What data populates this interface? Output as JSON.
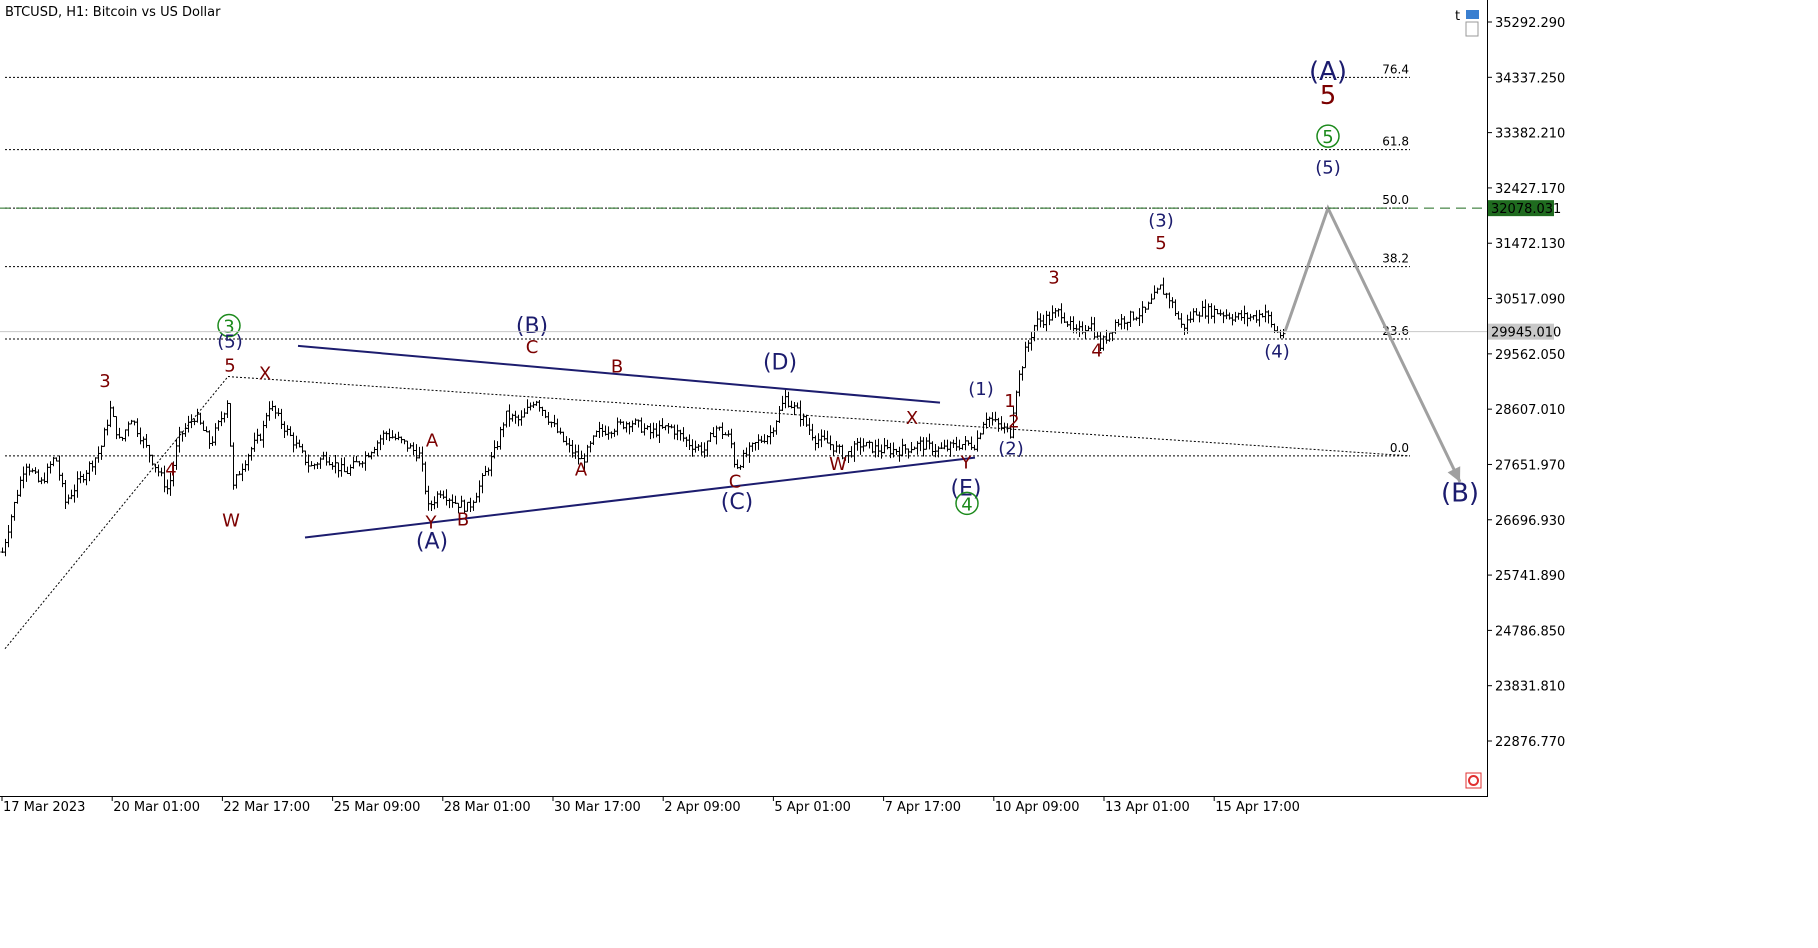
{
  "header": {
    "symbol_text": "BTCUSD, H1:  Bitcoin vs US Dollar"
  },
  "icons": {
    "toolbar": "trading-tool-icons",
    "corner": "one-click-trading-icon"
  },
  "colors": {
    "bars": "#000000",
    "grid": "#000000",
    "dark_red": "#7B0000",
    "navy": "#1C1C6E",
    "green": "#1C8A1C",
    "projection": "#A0A0A0",
    "triangle": "#1C1C6E",
    "target_badge": "#1F6B1F",
    "price_badge": "#C8C8C8",
    "corner_icon": "#E03030"
  },
  "chart_data": {
    "type": "candlestick",
    "symbol": "BTCUSD",
    "timeframe": "H1",
    "title": "Bitcoin vs US Dollar",
    "ylim": [
      21900,
      35900
    ],
    "y_ticks": [
      "35292.290",
      "34337.250",
      "33382.210",
      "32427.170",
      "31472.130",
      "30517.090",
      "29562.050",
      "28607.010",
      "27651.970",
      "26696.930",
      "25741.890",
      "24786.850",
      "23831.810",
      "22876.770"
    ],
    "x_ticks": [
      "17 Mar 2023",
      "20 Mar 01:00",
      "22 Mar 17:00",
      "25 Mar 09:00",
      "28 Mar 01:00",
      "30 Mar 17:00",
      "2 Apr 09:00",
      "5 Apr 01:00",
      "7 Apr 17:00",
      "10 Apr 09:00",
      "13 Apr 01:00",
      "15 Apr 17:00"
    ],
    "current_price": "29945.010",
    "target_price": "32078.031",
    "fibonacci_levels": [
      "76.4",
      "61.8",
      "50.0",
      "38.2",
      "23.6",
      "0.0"
    ],
    "price_path": [
      [
        0,
        26000
      ],
      [
        10,
        26700
      ],
      [
        25,
        27700
      ],
      [
        40,
        27300
      ],
      [
        55,
        27800
      ],
      [
        65,
        27000
      ],
      [
        80,
        27400
      ],
      [
        100,
        27900
      ],
      [
        110,
        28600
      ],
      [
        120,
        28000
      ],
      [
        130,
        28500
      ],
      [
        150,
        27800
      ],
      [
        168,
        27200
      ],
      [
        178,
        28100
      ],
      [
        195,
        28500
      ],
      [
        210,
        28000
      ],
      [
        222,
        28500
      ],
      [
        228,
        28800
      ],
      [
        232,
        27200
      ],
      [
        238,
        27500
      ],
      [
        250,
        27900
      ],
      [
        262,
        28200
      ],
      [
        268,
        28700
      ],
      [
        280,
        28400
      ],
      [
        295,
        28000
      ],
      [
        310,
        27600
      ],
      [
        325,
        27800
      ],
      [
        345,
        27500
      ],
      [
        365,
        27800
      ],
      [
        385,
        28200
      ],
      [
        405,
        28000
      ],
      [
        420,
        27800
      ],
      [
        428,
        26900
      ],
      [
        440,
        27200
      ],
      [
        455,
        27000
      ],
      [
        468,
        26900
      ],
      [
        480,
        27300
      ],
      [
        495,
        27900
      ],
      [
        505,
        28500
      ],
      [
        520,
        28400
      ],
      [
        535,
        28800
      ],
      [
        550,
        28400
      ],
      [
        565,
        28000
      ],
      [
        582,
        27700
      ],
      [
        597,
        28200
      ],
      [
        615,
        28300
      ],
      [
        630,
        28400
      ],
      [
        650,
        28200
      ],
      [
        670,
        28300
      ],
      [
        690,
        28000
      ],
      [
        705,
        27900
      ],
      [
        715,
        28300
      ],
      [
        730,
        28100
      ],
      [
        735,
        27600
      ],
      [
        755,
        28000
      ],
      [
        770,
        28200
      ],
      [
        785,
        28800
      ],
      [
        800,
        28500
      ],
      [
        815,
        28100
      ],
      [
        830,
        28000
      ],
      [
        845,
        27800
      ],
      [
        860,
        28000
      ],
      [
        880,
        27900
      ],
      [
        900,
        27900
      ],
      [
        920,
        28000
      ],
      [
        940,
        27900
      ],
      [
        960,
        28000
      ],
      [
        975,
        28000
      ],
      [
        985,
        28500
      ],
      [
        1000,
        28300
      ],
      [
        1010,
        28200
      ],
      [
        1015,
        28900
      ],
      [
        1025,
        29600
      ],
      [
        1035,
        30100
      ],
      [
        1050,
        30200
      ],
      [
        1060,
        30300
      ],
      [
        1075,
        29900
      ],
      [
        1090,
        30100
      ],
      [
        1100,
        29700
      ],
      [
        1115,
        30100
      ],
      [
        1130,
        30200
      ],
      [
        1145,
        30300
      ],
      [
        1160,
        30700
      ],
      [
        1170,
        30500
      ],
      [
        1182,
        30000
      ],
      [
        1195,
        30300
      ],
      [
        1215,
        30300
      ],
      [
        1235,
        30200
      ],
      [
        1255,
        30200
      ],
      [
        1265,
        30300
      ],
      [
        1272,
        30000
      ],
      [
        1280,
        29900
      ],
      [
        1285,
        29950
      ]
    ],
    "projection": [
      [
        1285,
        29945
      ],
      [
        1328,
        32078
      ],
      [
        1460,
        27350
      ]
    ],
    "wave_labels": [
      {
        "text": "3",
        "color": "dark_red",
        "size": "m",
        "price": 28990,
        "bar": 105
      },
      {
        "text": "4",
        "color": "dark_red",
        "size": "m",
        "price": 27460,
        "bar": 171
      },
      {
        "text": "3",
        "color": "green",
        "size": "circle",
        "price": 29930,
        "bar": 229
      },
      {
        "text": "(5)",
        "color": "navy",
        "size": "m",
        "price": 29670,
        "bar": 230
      },
      {
        "text": "5",
        "color": "dark_red",
        "size": "m",
        "price": 29260,
        "bar": 230
      },
      {
        "text": "W",
        "color": "dark_red",
        "size": "m",
        "price": 26580,
        "bar": 231
      },
      {
        "text": "X",
        "color": "dark_red",
        "size": "m",
        "price": 29120,
        "bar": 265
      },
      {
        "text": "A",
        "color": "dark_red",
        "size": "m",
        "price": 27960,
        "bar": 432
      },
      {
        "text": "Y",
        "color": "dark_red",
        "size": "m",
        "price": 26550,
        "bar": 431
      },
      {
        "text": "(A)",
        "color": "navy",
        "size": "l",
        "price": 26200,
        "bar": 432
      },
      {
        "text": "B",
        "color": "dark_red",
        "size": "m",
        "price": 26600,
        "bar": 463
      },
      {
        "text": "(B)",
        "color": "navy",
        "size": "l",
        "price": 29920,
        "bar": 532
      },
      {
        "text": "C",
        "color": "dark_red",
        "size": "m",
        "price": 29580,
        "bar": 532
      },
      {
        "text": "B",
        "color": "dark_red",
        "size": "m",
        "price": 29240,
        "bar": 617
      },
      {
        "text": "A",
        "color": "dark_red",
        "size": "m",
        "price": 27460,
        "bar": 581
      },
      {
        "text": "C",
        "color": "dark_red",
        "size": "m",
        "price": 27250,
        "bar": 735
      },
      {
        "text": "(C)",
        "color": "navy",
        "size": "l",
        "price": 26880,
        "bar": 737
      },
      {
        "text": "(D)",
        "color": "navy",
        "size": "l",
        "price": 29290,
        "bar": 780
      },
      {
        "text": "X",
        "color": "dark_red",
        "size": "m",
        "price": 28350,
        "bar": 912
      },
      {
        "text": "W",
        "color": "dark_red",
        "size": "m",
        "price": 27560,
        "bar": 838
      },
      {
        "text": "Y",
        "color": "dark_red",
        "size": "m",
        "price": 27580,
        "bar": 966
      },
      {
        "text": "(E)",
        "color": "navy",
        "size": "l",
        "price": 27120,
        "bar": 966
      },
      {
        "text": "4",
        "color": "green",
        "size": "circle",
        "price": 26860,
        "bar": 967
      },
      {
        "text": "(1)",
        "color": "navy",
        "size": "m",
        "price": 28850,
        "bar": 981
      },
      {
        "text": "1",
        "color": "dark_red",
        "size": "m",
        "price": 28640,
        "bar": 1010
      },
      {
        "text": "2",
        "color": "dark_red",
        "size": "m",
        "price": 28290,
        "bar": 1014
      },
      {
        "text": "(2)",
        "color": "navy",
        "size": "m",
        "price": 27820,
        "bar": 1011
      },
      {
        "text": "3",
        "color": "dark_red",
        "size": "m",
        "price": 30780,
        "bar": 1054
      },
      {
        "text": "4",
        "color": "dark_red",
        "size": "m",
        "price": 29520,
        "bar": 1097
      },
      {
        "text": "(3)",
        "color": "navy",
        "size": "m",
        "price": 31760,
        "bar": 1161
      },
      {
        "text": "5",
        "color": "dark_red",
        "size": "m",
        "price": 31370,
        "bar": 1161
      },
      {
        "text": "(4)",
        "color": "navy",
        "size": "m",
        "price": 29500,
        "bar": 1277
      },
      {
        "text": "(A)",
        "color": "navy",
        "size": "xl",
        "price": 34290,
        "bar": 1328
      },
      {
        "text": "5",
        "color": "dark_red",
        "size": "xl",
        "price": 33880,
        "bar": 1328
      },
      {
        "text": "5",
        "color": "green",
        "size": "circle",
        "price": 33200,
        "bar": 1328
      },
      {
        "text": "(5)",
        "color": "navy",
        "size": "m",
        "price": 32680,
        "bar": 1328
      },
      {
        "text": "(B)",
        "color": "navy",
        "size": "xl",
        "price": 27010,
        "bar": 1460
      }
    ],
    "triangle_lines": [
      [
        [
          298,
          29700
        ],
        [
          940,
          28720
        ]
      ],
      [
        [
          305,
          26390
        ],
        [
          975,
          27770
        ]
      ]
    ],
    "dotted_lines": [
      [
        [
          5,
          24470
        ],
        [
          228,
          29170
        ]
      ],
      [
        [
          228,
          29170
        ],
        [
          1410,
          27800
        ]
      ]
    ]
  }
}
